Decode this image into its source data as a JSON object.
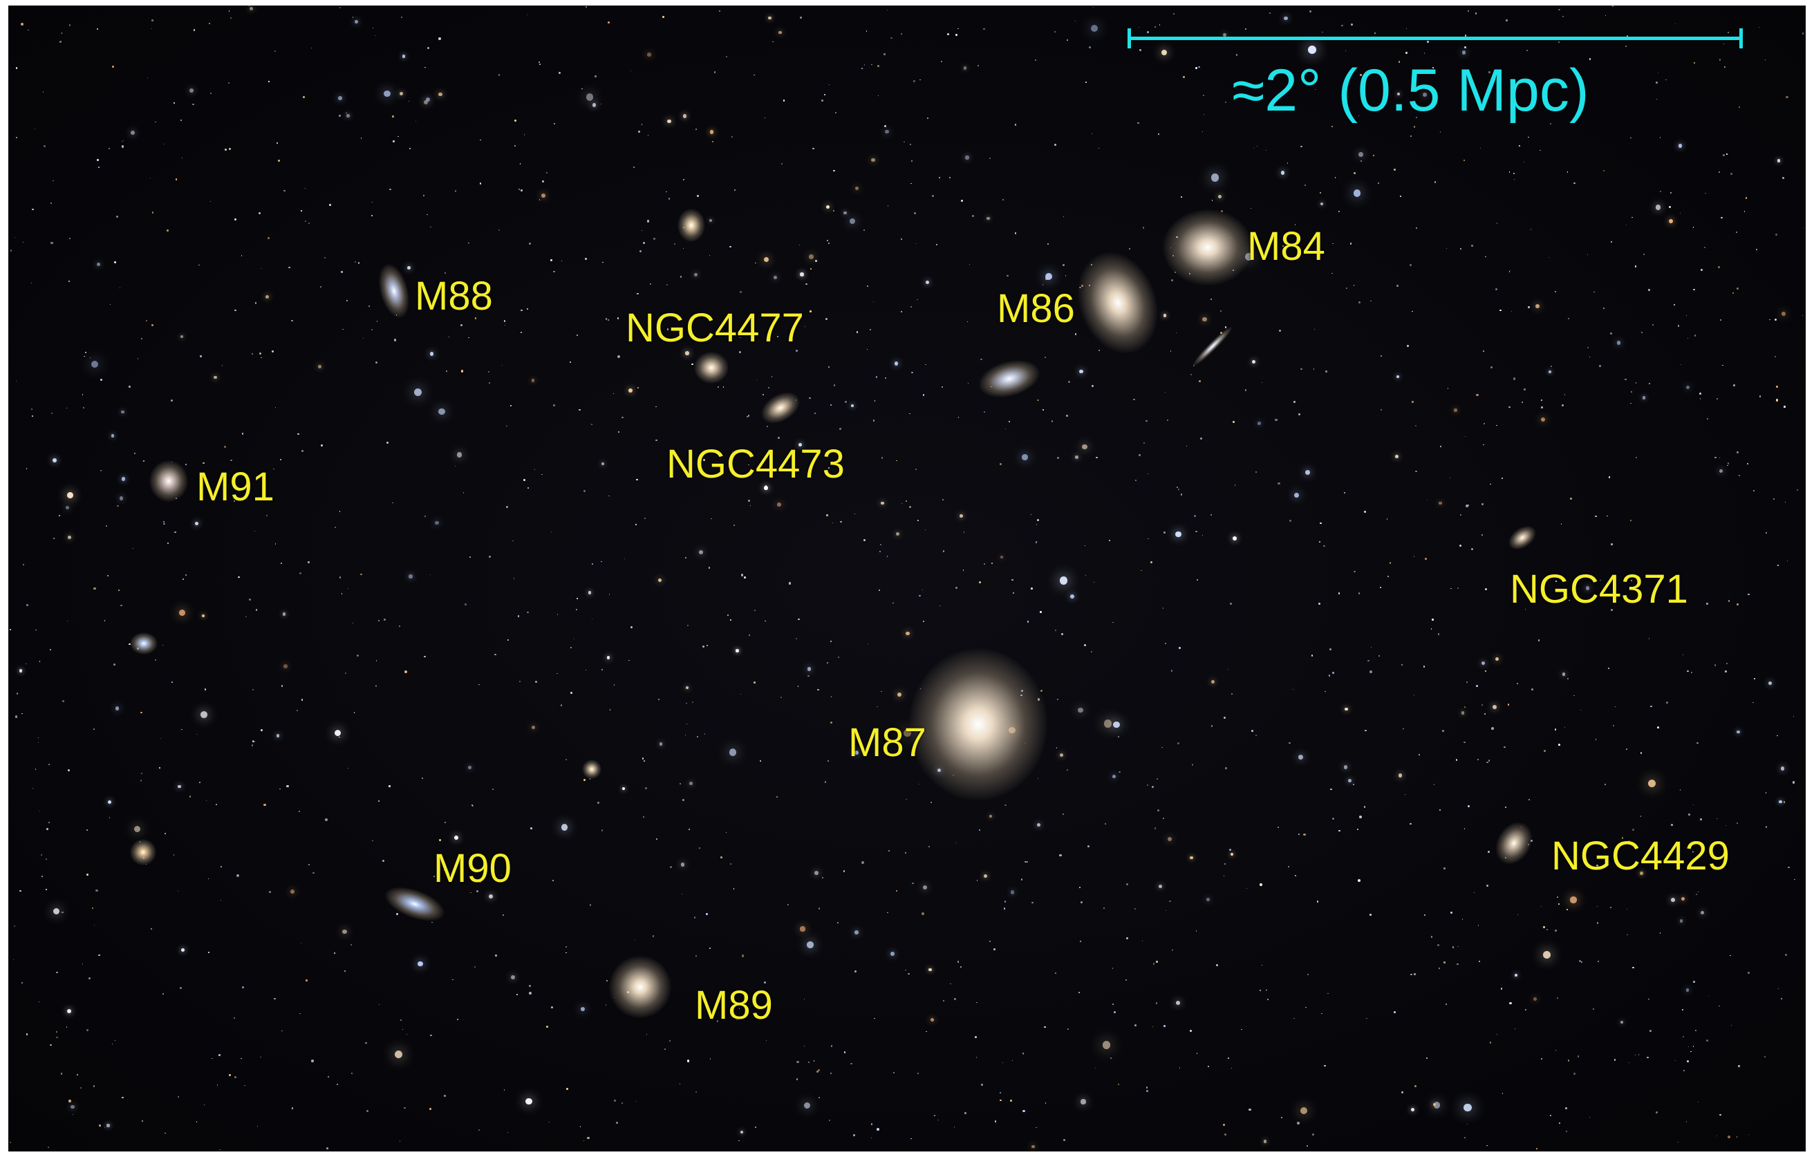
{
  "scale_bar": {
    "label": "≈2° (0.5 Mpc)",
    "color": "#1fe3e8"
  },
  "label_color": "#f5ef2a",
  "galaxy_labels": [
    {
      "name": "M84"
    },
    {
      "name": "M86"
    },
    {
      "name": "M88"
    },
    {
      "name": "NGC4477"
    },
    {
      "name": "NGC4473"
    },
    {
      "name": "M91"
    },
    {
      "name": "NGC4371"
    },
    {
      "name": "M87"
    },
    {
      "name": "M90"
    },
    {
      "name": "NGC4429"
    },
    {
      "name": "M89"
    }
  ]
}
